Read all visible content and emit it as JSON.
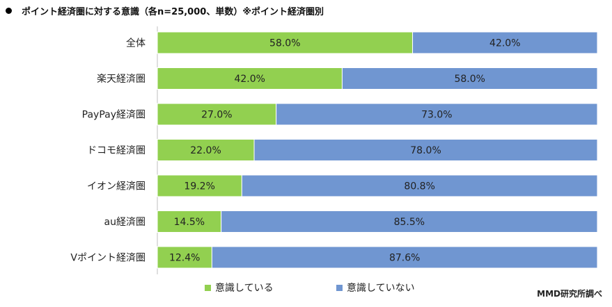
{
  "title": "ポイント経済圏に対する意識（各n=25,000、単数）※ポイント経済圏別",
  "source": "MMD研究所調べ",
  "colors": {
    "aware": "#92d050",
    "unaware": "#7096d1"
  },
  "chart_data": {
    "type": "bar",
    "orientation": "horizontal",
    "stacked": true,
    "xlim": [
      0,
      100
    ],
    "categories": [
      "全体",
      "楽天経済圏",
      "PayPay経済圏",
      "ドコモ経済圏",
      "イオン経済圏",
      "au経済圏",
      "Vポイント経済圏"
    ],
    "series": [
      {
        "name": "意識している",
        "values": [
          58.0,
          42.0,
          27.0,
          22.0,
          19.2,
          14.5,
          12.4
        ]
      },
      {
        "name": "意識していない",
        "values": [
          42.0,
          58.0,
          73.0,
          78.0,
          80.8,
          85.5,
          87.6
        ]
      }
    ],
    "data_labels": [
      [
        "58.0%",
        "42.0%",
        "27.0%",
        "22.0%",
        "19.2%",
        "14.5%",
        "12.4%"
      ],
      [
        "42.0%",
        "58.0%",
        "73.0%",
        "78.0%",
        "80.8%",
        "85.5%",
        "87.6%"
      ]
    ],
    "legend_position": "bottom"
  }
}
